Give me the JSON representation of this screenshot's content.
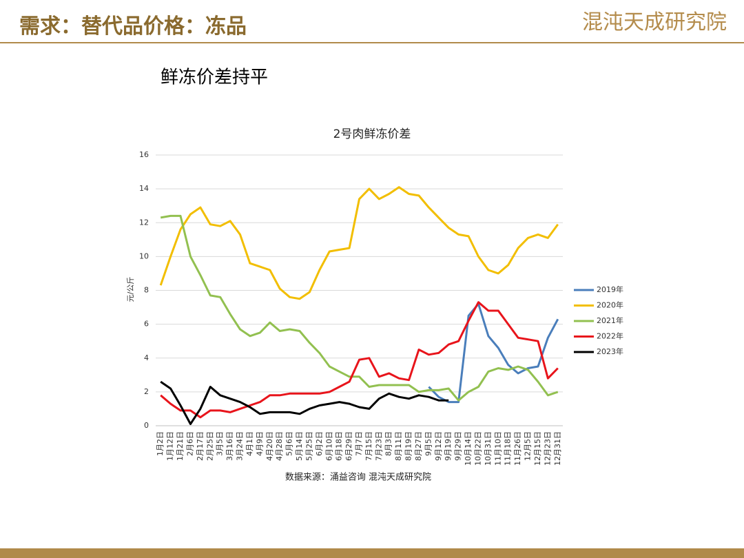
{
  "header": {
    "title": "需求：替代品价格：冻品",
    "logo": "混沌天成研究院"
  },
  "subtitle": "鲜冻价差持平",
  "chart_data": {
    "type": "line",
    "title": "2号肉鲜冻价差",
    "y_label": "元/公斤",
    "categories": [
      "1月2日",
      "1月12日",
      "1月21日",
      "2月6日",
      "2月17日",
      "2月25日",
      "3月5日",
      "3月16日",
      "3月24日",
      "4月1日",
      "4月9日",
      "4月20日",
      "4月28日",
      "5月6日",
      "5月14日",
      "5月25日",
      "6月2日",
      "6月10日",
      "6月18日",
      "6月29日",
      "7月7日",
      "7月15日",
      "7月23日",
      "8月3日",
      "8月11日",
      "8月19日",
      "8月27日",
      "9月5日",
      "9月12日",
      "9月19日",
      "9月29日",
      "10月14日",
      "10月22日",
      "10月31日",
      "11月10日",
      "11月18日",
      "11月26日",
      "12月5日",
      "12月15日",
      "12月23日",
      "12月31日"
    ],
    "series": [
      {
        "name": "2019年",
        "color": "#4a7ebb",
        "values": [
          null,
          null,
          null,
          null,
          null,
          null,
          null,
          null,
          null,
          null,
          null,
          null,
          null,
          null,
          null,
          null,
          null,
          null,
          null,
          null,
          null,
          null,
          null,
          null,
          null,
          null,
          null,
          2.3,
          1.7,
          1.4,
          1.4,
          6.5,
          7.2,
          5.3,
          4.6,
          3.6,
          3.1,
          3.4,
          3.5,
          5.2,
          6.3
        ]
      },
      {
        "name": "2020年",
        "color": "#f2be00",
        "values": [
          8.3,
          10.0,
          11.6,
          12.5,
          12.9,
          11.9,
          11.8,
          12.1,
          11.3,
          9.6,
          9.4,
          9.2,
          8.1,
          7.6,
          7.5,
          7.9,
          9.2,
          10.3,
          10.4,
          10.5,
          13.4,
          14.0,
          13.4,
          13.7,
          14.1,
          13.7,
          13.6,
          12.9,
          12.3,
          11.7,
          11.3,
          11.2,
          10.0,
          9.2,
          9.0,
          9.5,
          10.5,
          11.1,
          11.3,
          11.1,
          11.9
        ]
      },
      {
        "name": "2021年",
        "color": "#92c050",
        "values": [
          12.3,
          12.4,
          12.4,
          10.0,
          8.9,
          7.7,
          7.6,
          6.6,
          5.7,
          5.3,
          5.5,
          6.1,
          5.6,
          5.7,
          5.6,
          4.9,
          4.3,
          3.5,
          3.2,
          2.9,
          2.9,
          2.3,
          2.4,
          2.4,
          2.4,
          2.4,
          2.0,
          2.1,
          2.1,
          2.2,
          1.5,
          2.0,
          2.3,
          3.2,
          3.4,
          3.3,
          3.5,
          3.3,
          2.6,
          1.8,
          2.0
        ]
      },
      {
        "name": "2022年",
        "color": "#e8141b",
        "values": [
          1.8,
          1.3,
          0.9,
          0.9,
          0.5,
          0.9,
          0.9,
          0.8,
          1.0,
          1.2,
          1.4,
          1.8,
          1.8,
          1.9,
          1.9,
          1.9,
          1.9,
          2.0,
          2.3,
          2.6,
          3.9,
          4.0,
          2.9,
          3.1,
          2.8,
          2.7,
          4.5,
          4.2,
          4.3,
          4.8,
          5.0,
          6.2,
          7.3,
          6.8,
          6.8,
          6.0,
          5.2,
          5.1,
          5.0,
          2.8,
          3.4
        ]
      },
      {
        "name": "2023年",
        "color": "#000000",
        "values": [
          2.6,
          2.2,
          1.2,
          0.1,
          1.0,
          2.3,
          1.8,
          1.6,
          1.4,
          1.1,
          0.7,
          0.8,
          0.8,
          0.8,
          0.7,
          1.0,
          1.2,
          1.3,
          1.4,
          1.3,
          1.1,
          1.0,
          1.6,
          1.9,
          1.7,
          1.6,
          1.8,
          1.7,
          1.5,
          1.5,
          null,
          null,
          null,
          null,
          null,
          null,
          null,
          null,
          null,
          null,
          null
        ]
      }
    ],
    "ylim": [
      0,
      16
    ],
    "yticks": [
      0,
      2,
      4,
      6,
      8,
      10,
      12,
      14,
      16
    ],
    "grid": true,
    "legend": "right"
  },
  "source": "数据来源：涌益咨询 混沌天成研究院"
}
